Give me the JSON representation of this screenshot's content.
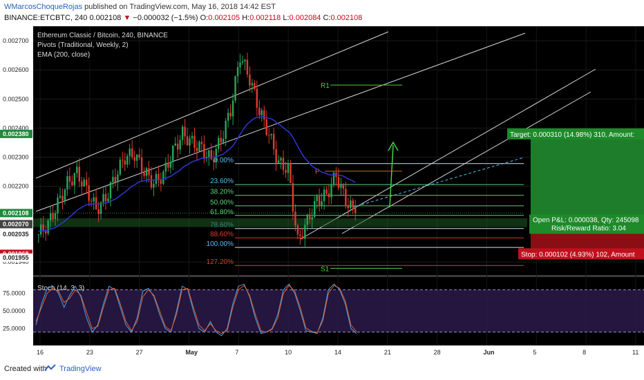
{
  "header": {
    "author": "WMarcosChoqueRojas",
    "published_text": " published on TradingView.com, May 16, 2018 14:42 EST",
    "symbol_line": "BINANCE:ETCBTC, 240",
    "last": "0.002108",
    "change_arrow": "▼",
    "change": "−0.000032 (−1.5%)",
    "o_label": "O:",
    "o_value": "0.002105",
    "h_label": "H:",
    "h_value": "0.002118",
    "l_label": "L:",
    "l_value": "0.002084",
    "c_label": "C:",
    "c_value": "0.002108"
  },
  "legend": {
    "title": "Ethereum Classic / Bitcoin, 240, BINANCE",
    "pivots": "Pivots (Traditional, Weekly, 2)",
    "ema": "EMA (200, close)"
  },
  "colors": {
    "bull": "#26a65b",
    "bear": "#e23b2f",
    "ema": "#2f36d6",
    "channel": "#d8d8d8",
    "fib": "#4fc3f7",
    "target_bg": "#1e7d2a",
    "stop_bg": "#c0101e"
  },
  "chart_data": [
    {
      "type": "candlestick",
      "title": "Ethereum Classic / Bitcoin, 240, BINANCE",
      "y_axis_ticks": [
        "0.002700",
        "0.002600",
        "0.002500",
        "0.002400",
        "0.002300",
        "0.002200",
        "0.001940"
      ],
      "price_tags": [
        {
          "label": "0.002380",
          "value": 0.00238,
          "color": "#1e8a3a"
        },
        {
          "label": "0.002108",
          "value": 0.002108,
          "color": "#1e8a3a"
        },
        {
          "label": "0.002068",
          "value": 0.002068,
          "color": "#000000"
        },
        {
          "label": "0.002070",
          "value": 0.00207,
          "color": "#444444"
        },
        {
          "label": "0.002035",
          "value": 0.002035,
          "color": "#000000"
        },
        {
          "label": "0.001968",
          "value": 0.001968,
          "color": "#c0101e"
        },
        {
          "label": "0.001955",
          "value": 0.001955,
          "color": "#000000"
        }
      ],
      "x_axis_ticks": [
        "16",
        "23",
        "27",
        "May",
        "7",
        "10",
        "14",
        "21",
        "28",
        "Jun",
        "5",
        "8",
        "11"
      ],
      "ylim": [
        0.0019,
        0.00275
      ],
      "pivots": [
        {
          "label": "R1",
          "value": 0.002548
        },
        {
          "label": "P",
          "value": 0.002252
        },
        {
          "label": "S1",
          "value": 0.001918
        }
      ],
      "fibonacci": [
        {
          "label": "0.00%",
          "value": 0.002278
        },
        {
          "label": "23.60%",
          "value": 0.002206
        },
        {
          "label": "38.20%",
          "value": 0.002169
        },
        {
          "label": "50.00%",
          "value": 0.002133
        },
        {
          "label": "61.80%",
          "value": 0.0021
        },
        {
          "label": "78.60%",
          "value": 0.002055
        },
        {
          "label": "88.60%",
          "value": 0.002023
        },
        {
          "label": "100.00%",
          "value": 0.00199
        },
        {
          "label": "127.20%",
          "value": 0.001928
        }
      ],
      "position": {
        "target_label": "Target: 0.000310 (14.98%) 310, Amount:",
        "pnl_label": "Open P&L: 0.000038, Qty: 245098",
        "rr_label": "Risk/Reward Ratio: 3.04",
        "stop_label": "Stop: 0.000102 (4.93%) 102, Amount"
      },
      "close_series_sample": [
        0.002035,
        0.00207,
        0.00214,
        0.00221,
        0.002245,
        0.00219,
        0.00212,
        0.00216,
        0.002235,
        0.0023,
        0.00231,
        0.00225,
        0.00221,
        0.00224,
        0.00232,
        0.00238,
        0.00235,
        0.00233,
        0.00229,
        0.00236,
        0.00246,
        0.00265,
        0.00257,
        0.00246,
        0.00238,
        0.00228,
        0.00226,
        0.00201,
        0.00208,
        0.00215,
        0.00217,
        0.00224,
        0.00215,
        0.002108
      ]
    },
    {
      "type": "line",
      "title": "Stoch (14, 3, 3)",
      "y_axis_ticks": [
        "75.0000",
        "50.0000",
        "25.0000"
      ],
      "ylim": [
        5,
        95
      ],
      "bands": [
        80,
        20
      ],
      "series": [
        {
          "name": "%K",
          "values": [
            30,
            60,
            82,
            85,
            75,
            55,
            72,
            85,
            70,
            40,
            20,
            30,
            60,
            85,
            80,
            55,
            30,
            20,
            40,
            78,
            82,
            70,
            45,
            25,
            20,
            50,
            85,
            80,
            50,
            25,
            20,
            35,
            20,
            15,
            25,
            60,
            85,
            88,
            70,
            40,
            18,
            20,
            25,
            45,
            80,
            88,
            75,
            50,
            22,
            20,
            18,
            40,
            80,
            88,
            80,
            60,
            25,
            18
          ]
        },
        {
          "name": "%D",
          "values": [
            35,
            55,
            75,
            82,
            78,
            62,
            68,
            80,
            72,
            48,
            25,
            28,
            55,
            80,
            82,
            60,
            35,
            22,
            35,
            70,
            80,
            72,
            50,
            28,
            22,
            45,
            80,
            82,
            55,
            30,
            22,
            32,
            22,
            18,
            22,
            55,
            80,
            86,
            72,
            45,
            22,
            20,
            24,
            40,
            75,
            86,
            78,
            55,
            26,
            21,
            19,
            36,
            75,
            86,
            82,
            64,
            30,
            20
          ]
        }
      ]
    }
  ],
  "footer": {
    "created_with": "Created with",
    "brand": "TradingView"
  }
}
